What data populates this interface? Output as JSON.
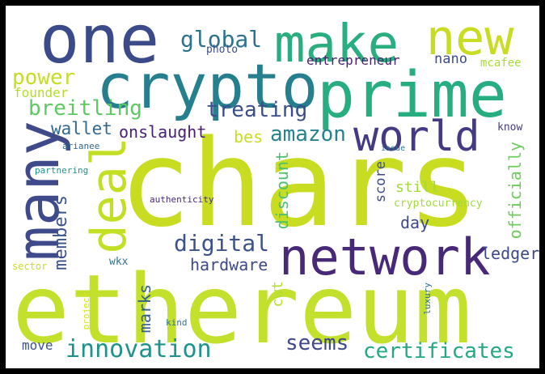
{
  "words": {
    "chars": "chars",
    "ethereum": "ethereum",
    "one": "one",
    "make": "make",
    "new": "new",
    "crypto": "crypto",
    "prime": "prime",
    "world": "world",
    "network": "network",
    "many": "many",
    "deal": "deal",
    "global": "global",
    "photo": "photo",
    "entrepreneur": "entrepreneur",
    "nano": "nano",
    "mcafee": "mcafee",
    "power": "power",
    "founder": "founder",
    "breitling": "breitling",
    "treating": "treating",
    "wallet": "wallet",
    "onslaught": "onslaught",
    "bes": "bes",
    "amazon": "amazon",
    "know": "know",
    "arianee": "arianee",
    "issue": "issue",
    "partnering": "partnering",
    "authenticity": "authenticity",
    "members": "members",
    "discount": "discount",
    "score": "score",
    "still": "still",
    "cryptocurrency": "cryptocurrency",
    "officially": "officially",
    "day": "day",
    "digital": "digital",
    "hardware": "hardware",
    "ledger": "ledger",
    "sector": "sector",
    "wkx": "wkx",
    "cwt": "cwt",
    "marks": "marks",
    "project": "project",
    "luxury": "luxury",
    "kind": "kind",
    "move": "move",
    "innovation": "innovation",
    "seems": "seems",
    "certificates": "certificates"
  }
}
